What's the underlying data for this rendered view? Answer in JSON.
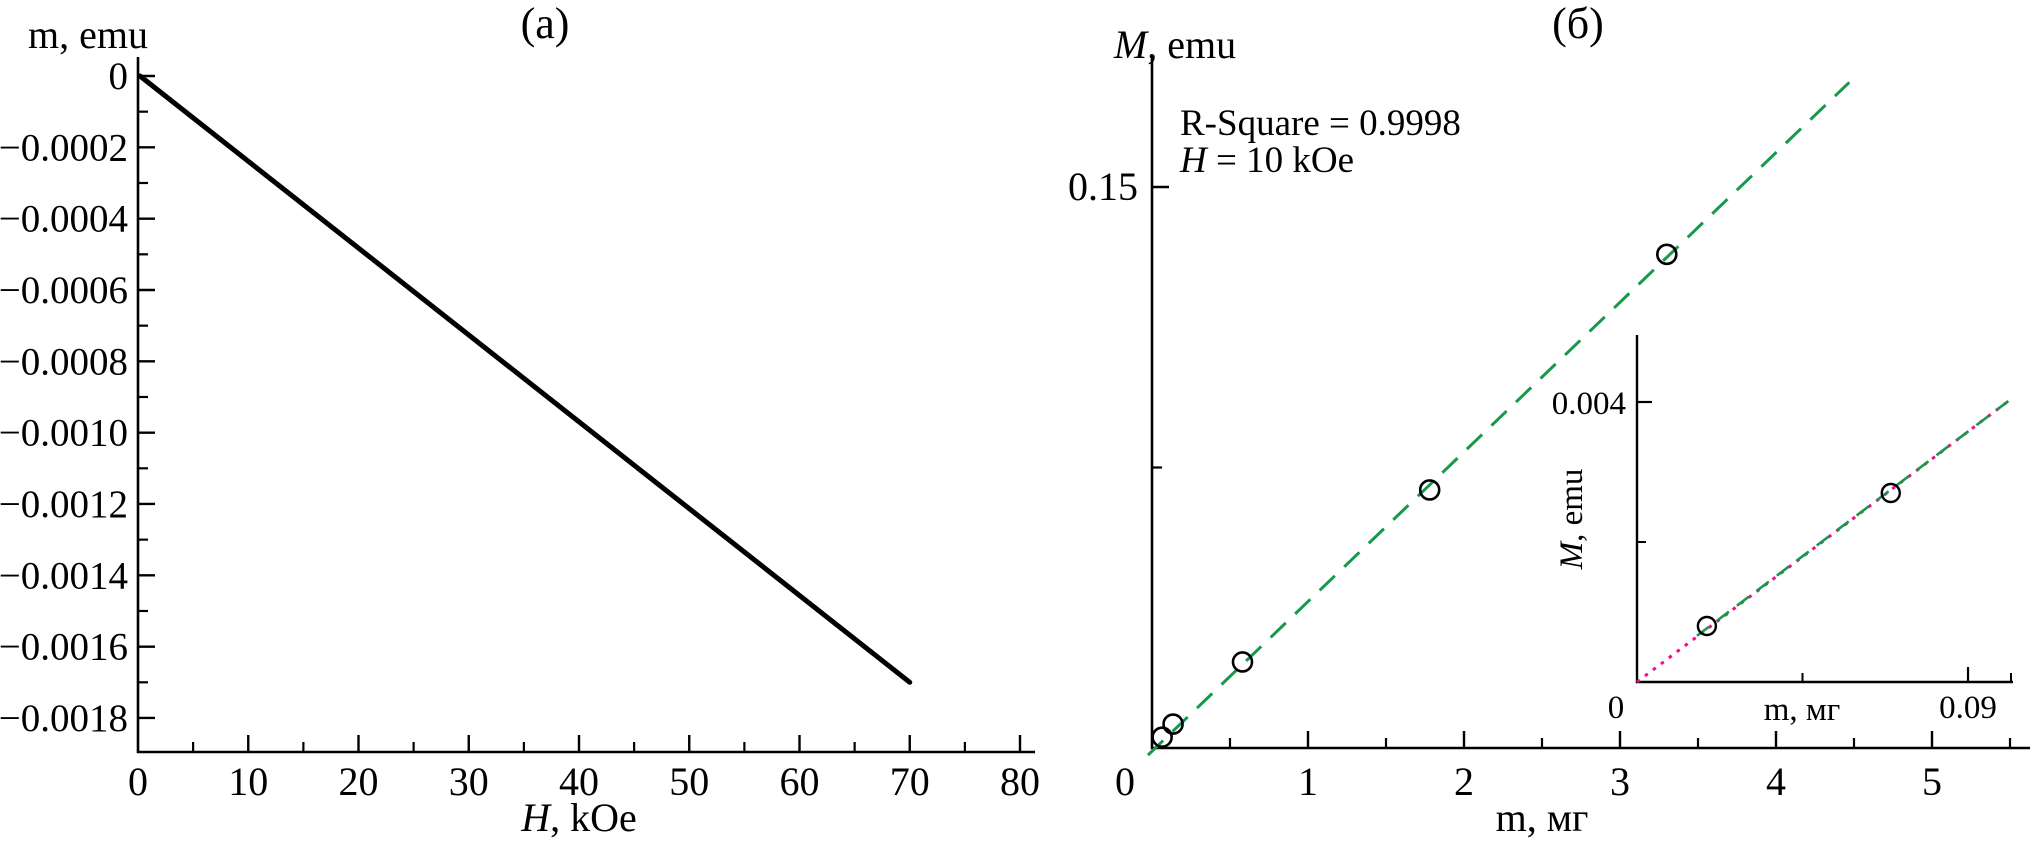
{
  "figure": {
    "background": "#ffffff",
    "text_color": "#000000",
    "fit_color": "#17984d",
    "extrapolation_color": "#ec0f87"
  },
  "chart_data": [
    {
      "id": "a",
      "type": "line",
      "panel_label": "(a)",
      "ylabel": "m, emu",
      "xlabel_italic": "H",
      "xlabel_rest": ", kOe",
      "xlim": [
        0,
        81
      ],
      "ylim": [
        -0.0019,
        5e-05
      ],
      "grid": false,
      "xtick_values": [
        0,
        10,
        20,
        30,
        40,
        50,
        60,
        70,
        80
      ],
      "xtick_labels": [
        "0",
        "10",
        "20",
        "30",
        "40",
        "50",
        "60",
        "70",
        "80"
      ],
      "ytick_values": [
        0,
        -0.0002,
        -0.0004,
        -0.0006,
        -0.0008,
        -0.001,
        -0.0012,
        -0.0014,
        -0.0016,
        -0.0018
      ],
      "ytick_labels": [
        "0",
        "−0.0002",
        "−0.0004",
        "−0.0006",
        "−0.0008",
        "−0.0010",
        "−0.0012",
        "−0.0014",
        "−0.0016",
        "−0.0018"
      ],
      "line": {
        "x": [
          0,
          70
        ],
        "y": [
          0,
          -0.0017
        ],
        "color": "#000000",
        "width": 5
      }
    },
    {
      "id": "b",
      "type": "scatter",
      "panel_label": "(б)",
      "ylabel_italic": "M",
      "ylabel_rest": ", emu",
      "xlabel": "m, мг",
      "annotation_r2": "R-Square = 0.9998",
      "annotation_field_italic": "H",
      "annotation_field_rest": " = 10 kOe",
      "xlim": [
        0,
        5.63
      ],
      "ylim": [
        0,
        0.185
      ],
      "grid": false,
      "xtick_values": [
        0,
        1,
        2,
        3,
        4,
        5
      ],
      "xtick_labels": [
        "0",
        "1",
        "2",
        "3",
        "4",
        "5"
      ],
      "ytick_values": [
        0.15
      ],
      "ytick_labels": [
        "0.15"
      ],
      "minor_ytick_values": [
        0.075
      ],
      "points": {
        "m": [
          0.065,
          0.135,
          0.58,
          1.78,
          3.3
        ],
        "M": [
          0.0029,
          0.0064,
          0.023,
          0.069,
          0.132
        ]
      },
      "fit_line": {
        "style": "dashed",
        "x": [
          -0.026,
          4.47
        ],
        "y": [
          -0.0019,
          0.178
        ]
      },
      "inset": {
        "xlabel": "m, мг",
        "ylabel_italic": "M",
        "ylabel_rest": ", emu",
        "x_origin_label": "0",
        "xlim": [
          0,
          0.102
        ],
        "ylim": [
          0,
          0.005
        ],
        "xtick_values": [
          0.09
        ],
        "xtick_labels": [
          "0.09"
        ],
        "minor_xtick_values": [
          0.045,
          0.102
        ],
        "ytick_values": [
          0.004
        ],
        "ytick_labels": [
          "0.004"
        ],
        "minor_ytick_values": [
          0.002
        ],
        "points": {
          "m": [
            0.019,
            0.069
          ],
          "M": [
            0.0008,
            0.0027
          ]
        },
        "fit_line": {
          "style": "dashed",
          "x": [
            0.0163,
            0.1014
          ],
          "y": [
            0.00066,
            0.00403
          ]
        },
        "extrapolation_line": {
          "style": "dotted",
          "x": [
            0,
            0.1014
          ],
          "y": [
            0,
            0.00403
          ]
        }
      }
    }
  ]
}
